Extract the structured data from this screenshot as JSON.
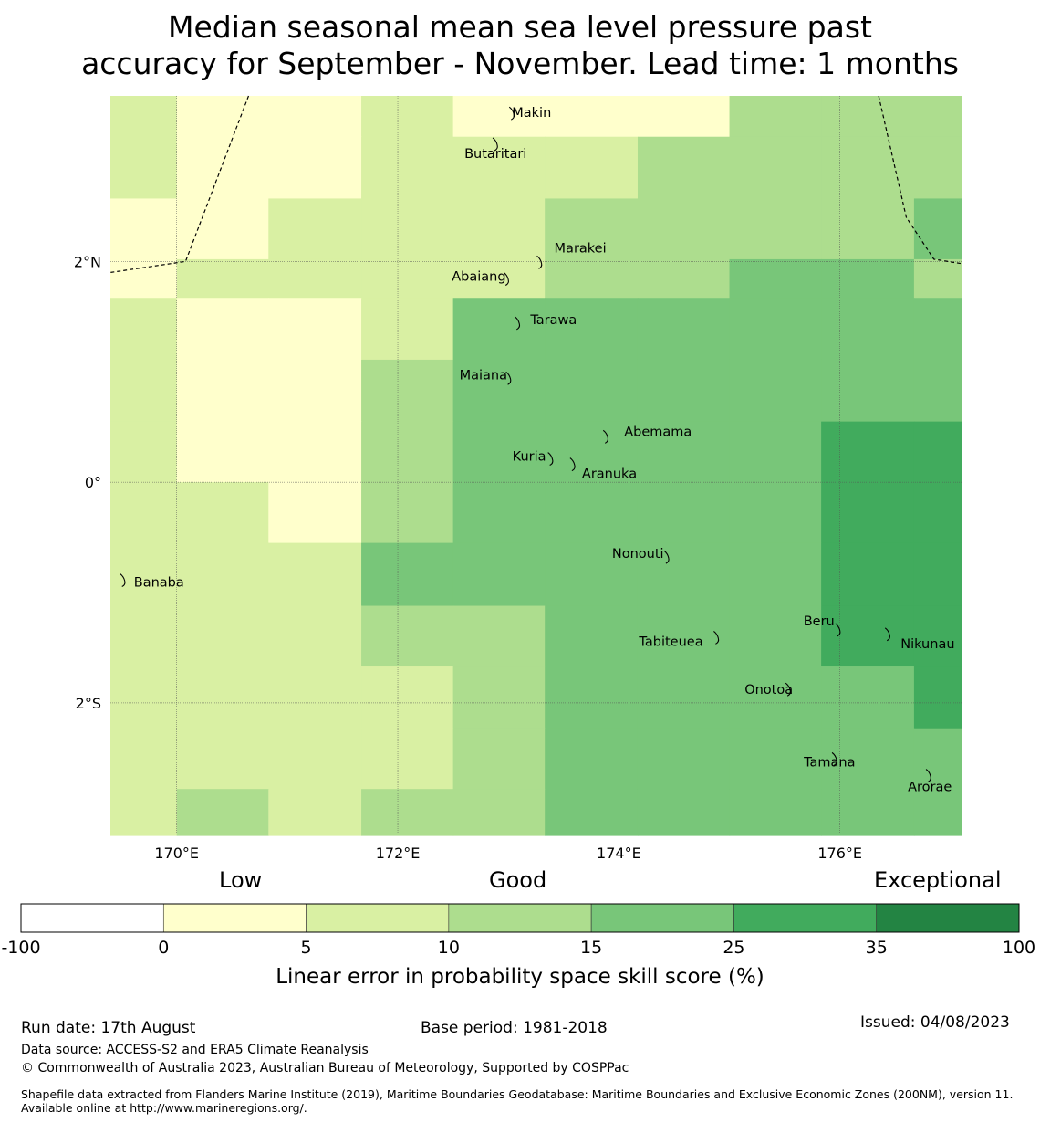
{
  "title": {
    "line1": "Median seasonal mean sea level pressure past",
    "line2": "accuracy for September - November. Lead time: 1 months"
  },
  "map": {
    "lon_range": [
      169.4,
      177.1
    ],
    "lat_range": [
      -3.2,
      3.5
    ],
    "lon_ticks": [
      {
        "value": 170,
        "label": "170°E"
      },
      {
        "value": 172,
        "label": "172°E"
      },
      {
        "value": 174,
        "label": "174°E"
      },
      {
        "value": 176,
        "label": "176°E"
      }
    ],
    "lat_ticks": [
      {
        "value": 2,
        "label": "2°N"
      },
      {
        "value": 0,
        "label": "0°"
      },
      {
        "value": -2,
        "label": "2°S"
      }
    ],
    "grid_lon_edges": [
      169.4,
      170.0,
      170.83,
      171.67,
      172.5,
      173.33,
      174.17,
      175.0,
      175.83,
      176.67,
      177.1
    ],
    "grid_lat_edges": [
      3.5,
      3.13,
      2.57,
      2.02,
      1.67,
      1.11,
      0.55,
      0.0,
      -0.55,
      -1.12,
      -1.67,
      -2.23,
      -2.78,
      -3.2
    ],
    "grid_classes": [
      [
        2,
        1,
        1,
        2,
        1,
        1,
        1,
        3,
        3,
        3
      ],
      [
        2,
        1,
        1,
        2,
        2,
        2,
        3,
        3,
        3,
        3
      ],
      [
        1,
        1,
        2,
        2,
        2,
        3,
        3,
        3,
        3,
        4
      ],
      [
        1,
        2,
        2,
        2,
        2,
        3,
        3,
        4,
        4,
        3
      ],
      [
        2,
        1,
        1,
        2,
        4,
        4,
        4,
        4,
        4,
        4
      ],
      [
        2,
        1,
        1,
        3,
        4,
        4,
        4,
        4,
        4,
        4
      ],
      [
        2,
        1,
        1,
        3,
        4,
        4,
        4,
        4,
        5,
        5
      ],
      [
        2,
        2,
        1,
        3,
        4,
        4,
        4,
        4,
        5,
        5
      ],
      [
        2,
        2,
        2,
        4,
        4,
        4,
        4,
        4,
        5,
        5
      ],
      [
        2,
        2,
        2,
        3,
        3,
        4,
        4,
        4,
        5,
        5
      ],
      [
        2,
        2,
        2,
        2,
        3,
        4,
        4,
        4,
        4,
        5
      ],
      [
        2,
        2,
        2,
        2,
        3,
        4,
        4,
        4,
        4,
        4
      ],
      [
        2,
        3,
        2,
        3,
        3,
        4,
        4,
        4,
        4,
        4
      ]
    ],
    "islands": [
      {
        "name": "Makin",
        "lon": 173.05,
        "lat": 3.35,
        "label_dx": -2,
        "label_dy": 5
      },
      {
        "name": "Butaritari",
        "lon": 172.9,
        "lat": 3.07,
        "label_dx": -36,
        "label_dy": 16
      },
      {
        "name": "Marakei",
        "lon": 173.3,
        "lat": 2.0,
        "label_dx": 14,
        "label_dy": -10
      },
      {
        "name": "Abaiang",
        "lon": 173.0,
        "lat": 1.85,
        "label_dx": -62,
        "label_dy": 3
      },
      {
        "name": "Tarawa",
        "lon": 173.1,
        "lat": 1.45,
        "label_dx": 12,
        "label_dy": 2
      },
      {
        "name": "Maiana",
        "lon": 173.02,
        "lat": 0.95,
        "label_dx": -56,
        "label_dy": 2
      },
      {
        "name": "Abemama",
        "lon": 173.9,
        "lat": 0.42,
        "label_dx": 18,
        "label_dy": 0
      },
      {
        "name": "Kuria",
        "lon": 173.4,
        "lat": 0.22,
        "label_dx": -44,
        "label_dy": 3
      },
      {
        "name": "Aranuka",
        "lon": 173.6,
        "lat": 0.17,
        "label_dx": 8,
        "label_dy": 16
      },
      {
        "name": "Nonouti",
        "lon": 174.45,
        "lat": -0.67,
        "label_dx": -62,
        "label_dy": 2
      },
      {
        "name": "Banaba",
        "lon": 169.53,
        "lat": -0.88,
        "label_dx": 10,
        "label_dy": 8
      },
      {
        "name": "Tabiteuea",
        "lon": 174.9,
        "lat": -1.4,
        "label_dx": -87,
        "label_dy": 10
      },
      {
        "name": "Beru",
        "lon": 176.0,
        "lat": -1.33,
        "label_dx": -40,
        "label_dy": -4
      },
      {
        "name": "Nikunau",
        "lon": 176.45,
        "lat": -1.37,
        "label_dx": 12,
        "label_dy": 16
      },
      {
        "name": "Onotoa",
        "lon": 175.55,
        "lat": -1.87,
        "label_dx": -50,
        "label_dy": 6
      },
      {
        "name": "Tamana",
        "lon": 175.97,
        "lat": -2.5,
        "label_dx": -36,
        "label_dy": 9
      },
      {
        "name": "Arorae",
        "lon": 176.82,
        "lat": -2.65,
        "label_dx": -25,
        "label_dy": 18
      }
    ],
    "boundary_west": [
      [
        170.65,
        3.5
      ],
      [
        170.08,
        2.0
      ],
      [
        169.4,
        1.9
      ]
    ],
    "boundary_east": [
      [
        176.35,
        3.5
      ],
      [
        176.6,
        2.4
      ],
      [
        176.85,
        2.02
      ],
      [
        177.1,
        1.98
      ]
    ]
  },
  "colorbar": {
    "boundaries": [
      "-100",
      "0",
      "5",
      "10",
      "15",
      "25",
      "35",
      "100"
    ],
    "colors": [
      "#ffffff",
      "#ffffcc",
      "#d9f0a3",
      "#addd8e",
      "#78c679",
      "#41ab5d",
      "#238443"
    ],
    "category_labels": {
      "low": "Low",
      "good": "Good",
      "exceptional": "Exceptional"
    },
    "label": "Linear error in probability space skill score (%)"
  },
  "footer": {
    "run_date": "Run date: 17th August",
    "base_period": "Base period: 1981-2018",
    "issued": "Issued: 04/08/2023",
    "data_source": "Data source: ACCESS-S2 and ERA5 Climate Reanalysis",
    "copyright": "© Commonwealth of Australia 2023, Australian Bureau of Meteorology, Supported by COSPPac",
    "shapefile": "Shapefile data extracted from Flanders Marine Institute (2019), Maritime Boundaries Geodatabase: Maritime Boundaries and Exclusive Economic Zones (200NM), version 11. Available online at http://www.marineregions.org/."
  }
}
